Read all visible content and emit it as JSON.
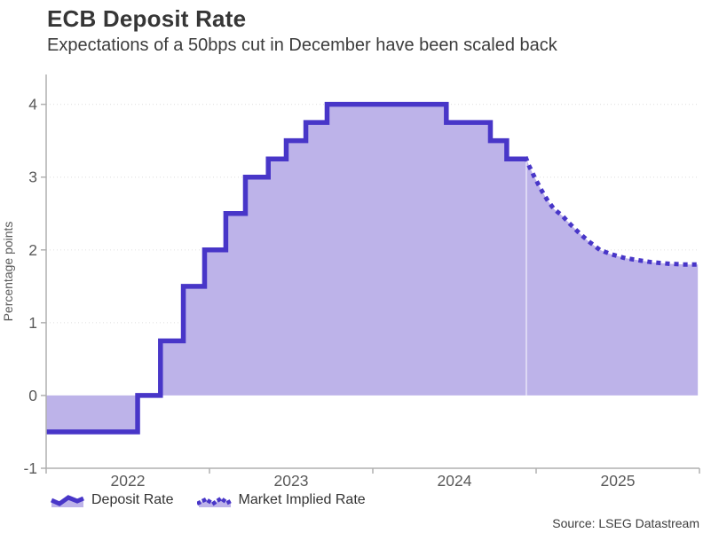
{
  "header": {
    "title": "ECB Deposit Rate",
    "subtitle": "Expectations of a 50bps cut in December have been scaled back"
  },
  "source": "Source: LSEG Datastream",
  "legend": [
    {
      "label": "Deposit Rate",
      "icon": "solid-wave-icon",
      "style": "solid"
    },
    {
      "label": "Market Implied Rate",
      "icon": "dotted-wave-icon",
      "style": "dotted"
    }
  ],
  "theme": {
    "line": "#4836C8",
    "fill": "#BDB3E9",
    "grid": "#E4E4E4",
    "axis": "#B0B0B0",
    "tick_text": "#5A5A5A",
    "title_text": "#363636",
    "body_text": "#3C3C3C",
    "forecast_divider": "rgba(255,255,255,0.5)"
  },
  "chart_data": {
    "type": "line",
    "title": "ECB Deposit Rate",
    "subtitle": "Expectations of a 50bps cut in December have been scaled back",
    "xlabel": "",
    "ylabel": "Percentage points",
    "x_unit": "year (decimal)",
    "xlim": [
      2022,
      2026
    ],
    "ylim": [
      -1,
      4.41
    ],
    "baseline": 0,
    "grid": "dotted-horizontal",
    "grid_values": [
      1,
      2,
      3,
      4
    ],
    "y_ticks": [
      {
        "label": "-1",
        "v": -1
      },
      {
        "label": "0",
        "v": 0
      },
      {
        "label": "1",
        "v": 1
      },
      {
        "label": "2",
        "v": 2
      },
      {
        "label": "3",
        "v": 3
      },
      {
        "label": "4",
        "v": 4
      }
    ],
    "x_tick_lines": [
      2022,
      2023,
      2024,
      2025,
      2026
    ],
    "x_tick_labels": [
      {
        "label": "2022",
        "x": 2022.5
      },
      {
        "label": "2023",
        "x": 2023.5
      },
      {
        "label": "2024",
        "x": 2024.5
      },
      {
        "label": "2025",
        "x": 2025.5
      }
    ],
    "legend_position": "bottom-left",
    "forecast_divider_x": 2024.94,
    "series": [
      {
        "name": "Deposit Rate",
        "type": "step-after",
        "style": "solid",
        "until": 2024.94,
        "points": [
          [
            2022.0,
            -0.5
          ],
          [
            2022.56,
            0.0
          ],
          [
            2022.7,
            0.75
          ],
          [
            2022.84,
            1.5
          ],
          [
            2022.97,
            2.0
          ],
          [
            2023.1,
            2.5
          ],
          [
            2023.22,
            3.0
          ],
          [
            2023.36,
            3.25
          ],
          [
            2023.47,
            3.5
          ],
          [
            2023.59,
            3.75
          ],
          [
            2023.72,
            4.0
          ],
          [
            2024.45,
            3.75
          ],
          [
            2024.72,
            3.5
          ],
          [
            2024.82,
            3.25
          ]
        ]
      },
      {
        "name": "Market Implied Rate",
        "type": "line",
        "style": "dotted",
        "points": [
          [
            2024.94,
            3.25
          ],
          [
            2024.96,
            3.14
          ],
          [
            2024.99,
            3.0
          ],
          [
            2025.03,
            2.83
          ],
          [
            2025.07,
            2.68
          ],
          [
            2025.11,
            2.56
          ],
          [
            2025.16,
            2.47
          ],
          [
            2025.21,
            2.35
          ],
          [
            2025.26,
            2.24
          ],
          [
            2025.32,
            2.12
          ],
          [
            2025.39,
            2.0
          ],
          [
            2025.46,
            1.94
          ],
          [
            2025.54,
            1.89
          ],
          [
            2025.62,
            1.86
          ],
          [
            2025.71,
            1.83
          ],
          [
            2025.81,
            1.81
          ],
          [
            2025.91,
            1.8
          ],
          [
            2025.99,
            1.8
          ]
        ]
      }
    ]
  }
}
